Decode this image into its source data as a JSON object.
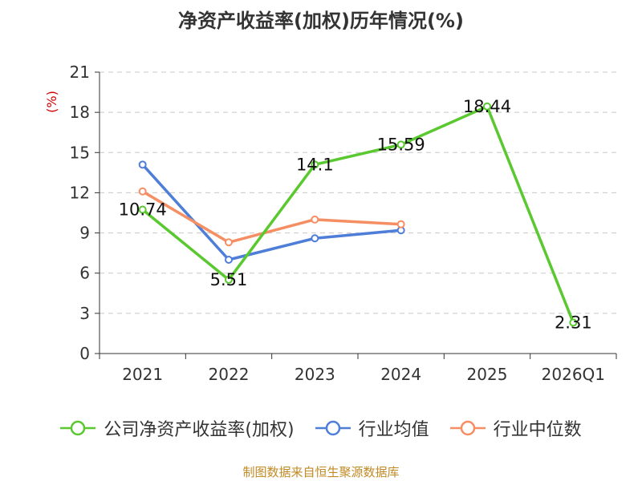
{
  "chart_data": {
    "type": "line",
    "title": "净资产收益率(加权)历年情况(%)",
    "ylabel": "(%)",
    "xlabel": "",
    "categories": [
      "2021",
      "2022",
      "2023",
      "2024",
      "2025",
      "2026Q1"
    ],
    "ylim": [
      0,
      21
    ],
    "yticks": [
      0,
      3,
      6,
      9,
      12,
      15,
      18,
      21
    ],
    "grid": true,
    "legend_position": "bottom",
    "series": [
      {
        "name": "公司净资产收益率(加权)",
        "color": "#5ac82f",
        "values": [
          10.74,
          5.51,
          14.1,
          15.59,
          18.44,
          2.31
        ],
        "labels": [
          "10.74",
          "5.51",
          "14.1",
          "15.59",
          "18.44",
          "2.31"
        ]
      },
      {
        "name": "行业均值",
        "color": "#4f7ed9",
        "values": [
          14.1,
          7.0,
          8.6,
          9.2,
          null,
          null
        ]
      },
      {
        "name": "行业中位数",
        "color": "#f68e63",
        "values": [
          12.1,
          8.3,
          10.0,
          9.65,
          null,
          null
        ]
      }
    ]
  },
  "source": "制图数据来自恒生聚源数据库"
}
